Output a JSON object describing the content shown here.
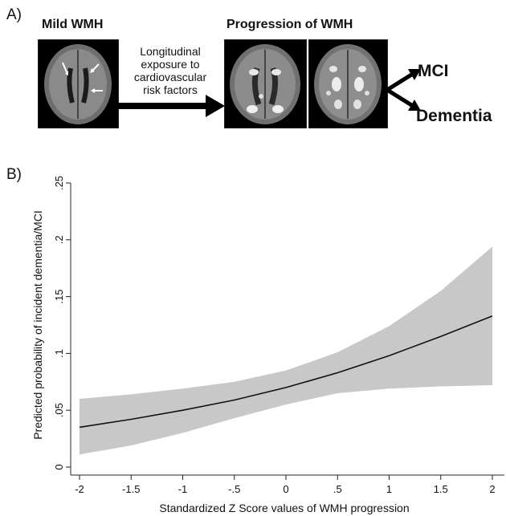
{
  "panel_a": {
    "label": "A)",
    "left_title": "Mild WMH",
    "right_title": "Progression of WMH",
    "arrow_text_lines": [
      "Longitudinal",
      "exposure to",
      "cardiovascular",
      "risk factors"
    ],
    "outcomes": [
      "MCI",
      "Dementia"
    ]
  },
  "panel_b": {
    "label": "B)"
  },
  "chart_data": {
    "type": "line",
    "title": "",
    "xlabel": "Standardized Z Score values of WMH progression",
    "ylabel": "Predicted probability of incident dementia/MCI",
    "xlim": [
      -2,
      2
    ],
    "ylim": [
      0,
      0.25
    ],
    "x_ticks": [
      -2,
      -1.5,
      -1,
      -0.5,
      0,
      0.5,
      1,
      1.5,
      2
    ],
    "x_tick_labels": [
      "-2",
      "-1.5",
      "-1",
      "-.5",
      "0",
      ".5",
      "1",
      "1.5",
      "2"
    ],
    "y_ticks": [
      0,
      0.05,
      0.1,
      0.15,
      0.2,
      0.25
    ],
    "y_tick_labels": [
      "0",
      ".05",
      ".1",
      ".15",
      ".2",
      ".25"
    ],
    "grid": false,
    "line_color": "#111111",
    "band_color": "#c8c8c8",
    "x": [
      -2,
      -1.5,
      -1,
      -0.5,
      0,
      0.5,
      1,
      1.5,
      2
    ],
    "series": [
      {
        "values": [
          0.035,
          0.042,
          0.05,
          0.059,
          0.07,
          0.083,
          0.098,
          0.115,
          0.133
        ]
      }
    ],
    "ci_lower": [
      0.011,
      0.019,
      0.03,
      0.043,
      0.055,
      0.065,
      0.069,
      0.071,
      0.072
    ],
    "ci_upper": [
      0.06,
      0.064,
      0.069,
      0.075,
      0.085,
      0.101,
      0.124,
      0.155,
      0.194
    ]
  }
}
